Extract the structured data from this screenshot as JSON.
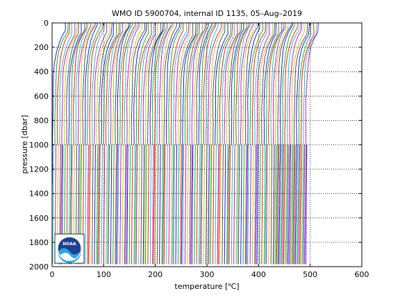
{
  "chart_data": {
    "type": "line",
    "title": "WMO ID 5900704, internal ID 1135, 05–Aug–2019",
    "xlabel": "temperature [°C]",
    "xlabel_main": "temperature [",
    "xlabel_deg": "o",
    "xlabel_unit": "C]",
    "ylabel": "pressure [dbar]",
    "xlim": [
      0,
      600
    ],
    "ylim": [
      2000,
      0
    ],
    "y_reversed": true,
    "x_ticks": [
      "0",
      "100",
      "200",
      "300",
      "400",
      "500",
      "600"
    ],
    "y_ticks": [
      "0",
      "200",
      "400",
      "600",
      "800",
      "1000",
      "1200",
      "1400",
      "1600",
      "1800",
      "2000"
    ],
    "grid": "dotted",
    "profile_count": 110,
    "profile_spacing": 4.5,
    "profile_start": 3,
    "surface_temperature": 29,
    "depth_1000_temperature": 4.5,
    "depth_2000_temperature": 2,
    "upper_layer_max_pressure": 1000,
    "deep_layer_max_pressure": 1980,
    "colors": [
      "#0000ff",
      "#00aa00",
      "#ff0000",
      "#00bfbf",
      "#bf00bf",
      "#bfbf00",
      "#404040"
    ]
  },
  "logo": {
    "name": "NOAA",
    "text": "NOAA"
  }
}
